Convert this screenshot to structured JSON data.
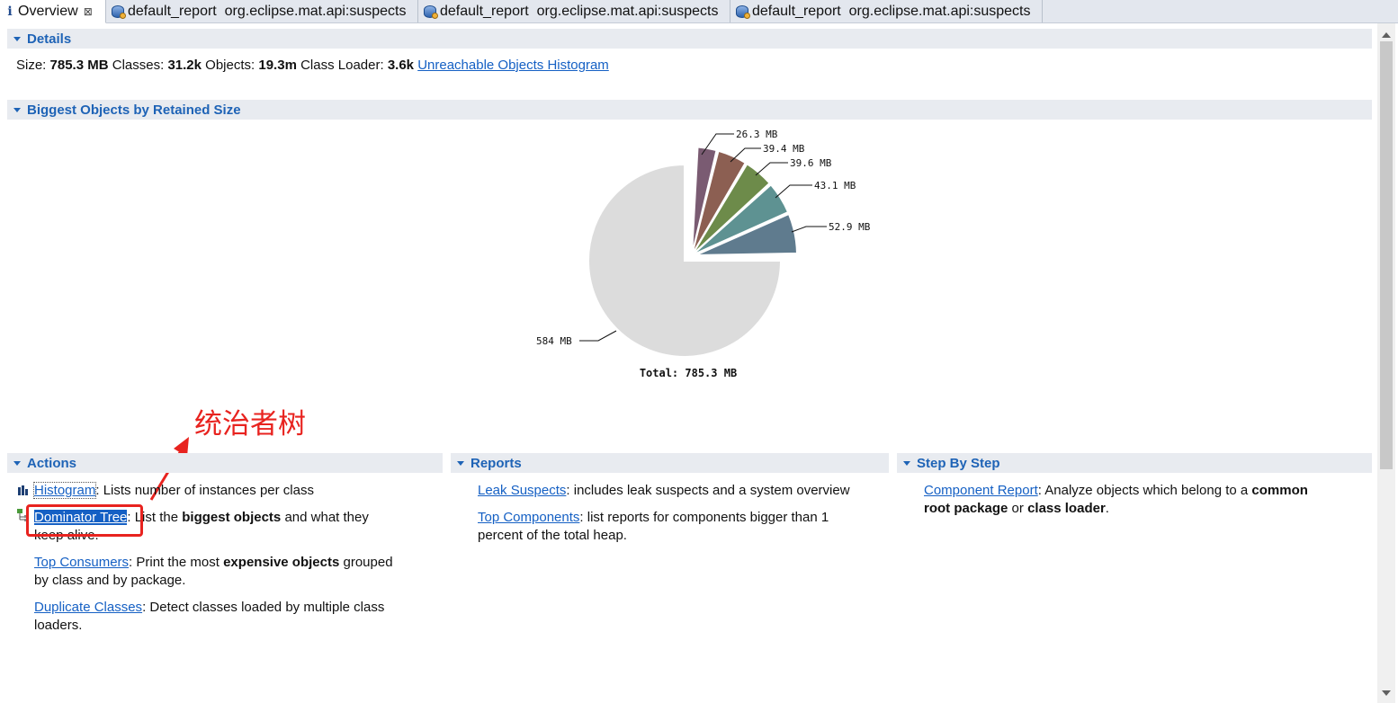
{
  "tabs": [
    {
      "label": "Overview",
      "icon": "info-icon",
      "close": "⊠"
    },
    {
      "label": "default_report  org.eclipse.mat.api:suspects",
      "icon": "database-icon"
    },
    {
      "label": "default_report  org.eclipse.mat.api:suspects",
      "icon": "database-icon"
    },
    {
      "label": "default_report  org.eclipse.mat.api:suspects",
      "icon": "database-icon"
    }
  ],
  "details": {
    "title": "Details",
    "size_label": "Size:",
    "size_value": "785.3 MB",
    "classes_label": "Classes:",
    "classes_value": "31.2k",
    "objects_label": "Objects:",
    "objects_value": "19.3m",
    "loader_label": "Class Loader:",
    "loader_value": "3.6k",
    "link": "Unreachable Objects Histogram"
  },
  "biggest": {
    "title": "Biggest Objects by Retained Size"
  },
  "chart_data": {
    "type": "pie",
    "unit": "MB",
    "slices": [
      {
        "label": "52.9 MB",
        "value": 52.9,
        "color": "#5f7b8e"
      },
      {
        "label": "43.1 MB",
        "value": 43.1,
        "color": "#5e9292"
      },
      {
        "label": "39.6 MB",
        "value": 39.6,
        "color": "#6d8b4a"
      },
      {
        "label": "39.4 MB",
        "value": 39.4,
        "color": "#8c5f52"
      },
      {
        "label": "26.3 MB",
        "value": 26.3,
        "color": "#7a5b72"
      },
      {
        "label": "584 MB",
        "value": 584,
        "color": "#dcdcdc"
      }
    ],
    "total_label": "Total:  785.3 MB"
  },
  "annotation": "统治者树",
  "actions": {
    "title": "Actions",
    "histogram": {
      "link": "Histogram",
      "text": ": Lists number of instances per class"
    },
    "dominator": {
      "link": "Dominator Tree",
      "text1": ": List the ",
      "bold": "biggest objects",
      "text2": " and what they",
      "text3": "keep alive."
    },
    "top_consumers": {
      "link": "Top Consumers",
      "text1": ": Print the most ",
      "bold": "expensive objects",
      "text2": " grouped",
      "text3": "by class and by package."
    },
    "duplicate": {
      "link": "Duplicate Classes",
      "text1": ": Detect classes loaded by multiple class",
      "text2": "loaders."
    }
  },
  "reports": {
    "title": "Reports",
    "leak": {
      "link": "Leak Suspects",
      "text": ": includes leak suspects and a system overview"
    },
    "top_components": {
      "link": "Top Components",
      "text1": ": list reports for components bigger than 1",
      "text2": "percent of the total heap."
    }
  },
  "step": {
    "title": "Step By Step",
    "component": {
      "link": "Component Report",
      "text1": ": Analyze objects which belong to a ",
      "bold1": "common",
      "bold2": "root package",
      "text2": " or ",
      "bold3": "class loader",
      "text3": "."
    }
  },
  "colors": {
    "accent": "#1e63b6",
    "link": "#1560c4",
    "annotation": "#e8231f"
  }
}
